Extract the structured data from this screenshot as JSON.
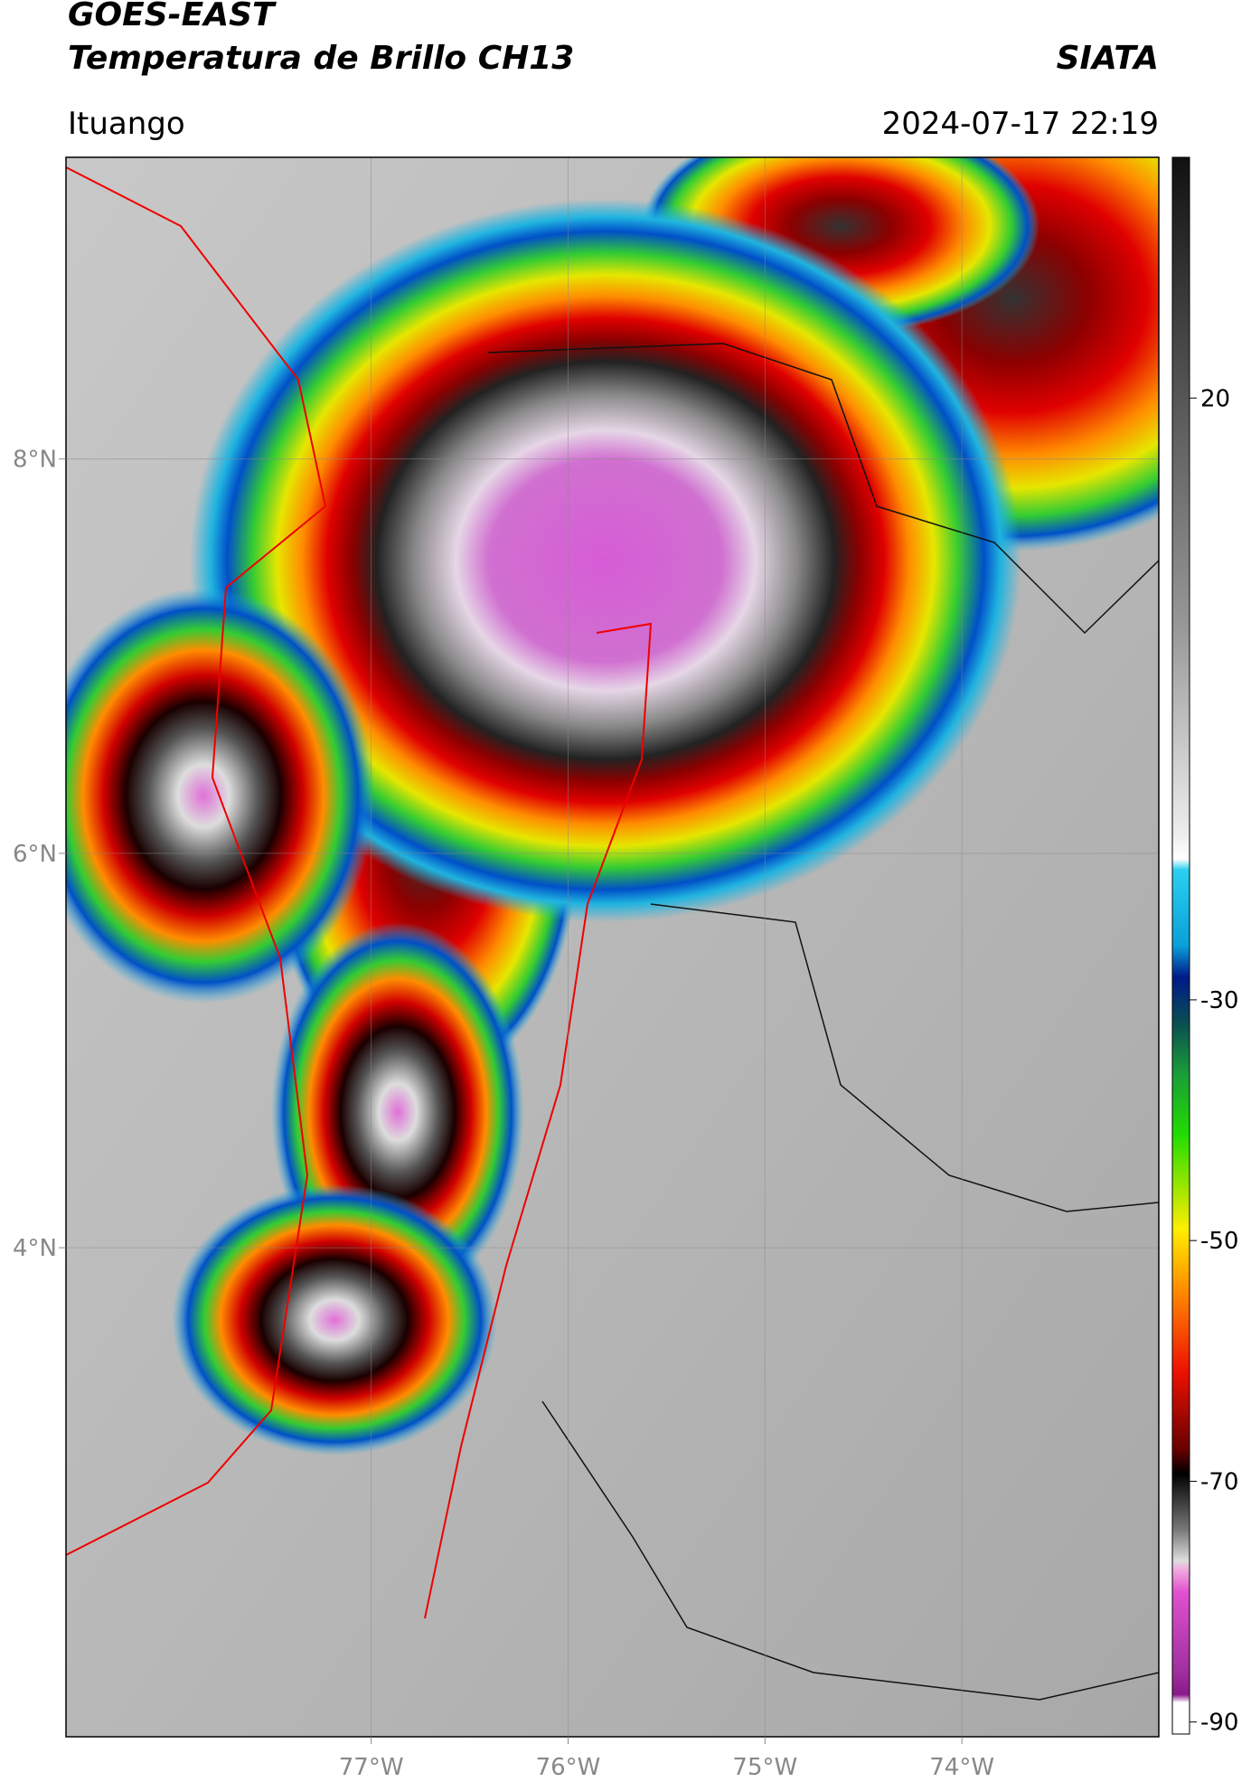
{
  "header": {
    "title": "GOES-EAST",
    "subtitle": "Temperatura de Brillo CH13",
    "agency": "SIATA",
    "location": "Ituango",
    "datetime": "2024-07-17 22:19"
  },
  "map": {
    "xlim": [
      -78.55,
      -73.0
    ],
    "ylim": [
      1.52,
      9.53
    ],
    "lon_ticks": [
      {
        "value": -77,
        "label": "77°W"
      },
      {
        "value": -76,
        "label": "76°W"
      },
      {
        "value": -75,
        "label": "75°W"
      },
      {
        "value": -74,
        "label": "74°W"
      }
    ],
    "lat_ticks": [
      {
        "value": 8,
        "label": "8°N"
      },
      {
        "value": 6,
        "label": "6°N"
      },
      {
        "value": 4,
        "label": "4°N"
      }
    ],
    "grid": true
  },
  "colorbar": {
    "lim": [
      -91,
      40
    ],
    "ticks": [
      20,
      -30,
      -50,
      -70,
      -90
    ]
  }
}
